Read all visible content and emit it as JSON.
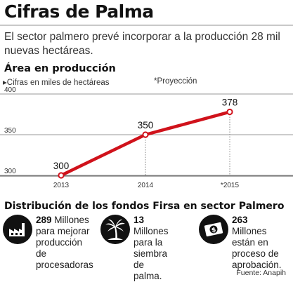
{
  "header": {
    "title": "Cifras de Palma",
    "subtitle": "El sector palmero prevé incorporar a la producción 28 mil nuevas hectáreas."
  },
  "chart_section": {
    "title": "Área en producción",
    "units_label": "▸Cifras en miles de hectáreas",
    "projection_label": "*Proyección"
  },
  "chart_data": {
    "type": "line",
    "title": "Área en producción",
    "ylabel": "Cifras en miles de hectáreas",
    "categories": [
      "2013",
      "2014",
      "*2015"
    ],
    "values": [
      300,
      350,
      378
    ],
    "value_labels": [
      "300",
      "350",
      "378"
    ],
    "yticks": [
      300,
      350,
      400
    ],
    "ylim": [
      300,
      400
    ],
    "grid": "horizontal",
    "line_color": "#d0121b"
  },
  "distribution": {
    "title": "Distribución de los fondos Firsa en sector Palmero",
    "funds": [
      {
        "icon": "factory-icon",
        "amount": "289",
        "lines": [
          " Millones",
          "para mejorar",
          "producción de",
          "procesadoras"
        ]
      },
      {
        "icon": "palm-tree-icon",
        "amount": "13",
        "lines": [
          " Millones",
          "para la siembra",
          "de palma."
        ]
      },
      {
        "icon": "money-bill-icon",
        "amount": "263",
        "lines": [
          " Millones",
          "están en",
          "proceso de",
          "aprobación."
        ]
      }
    ]
  },
  "source": "Fuente: Anapih"
}
